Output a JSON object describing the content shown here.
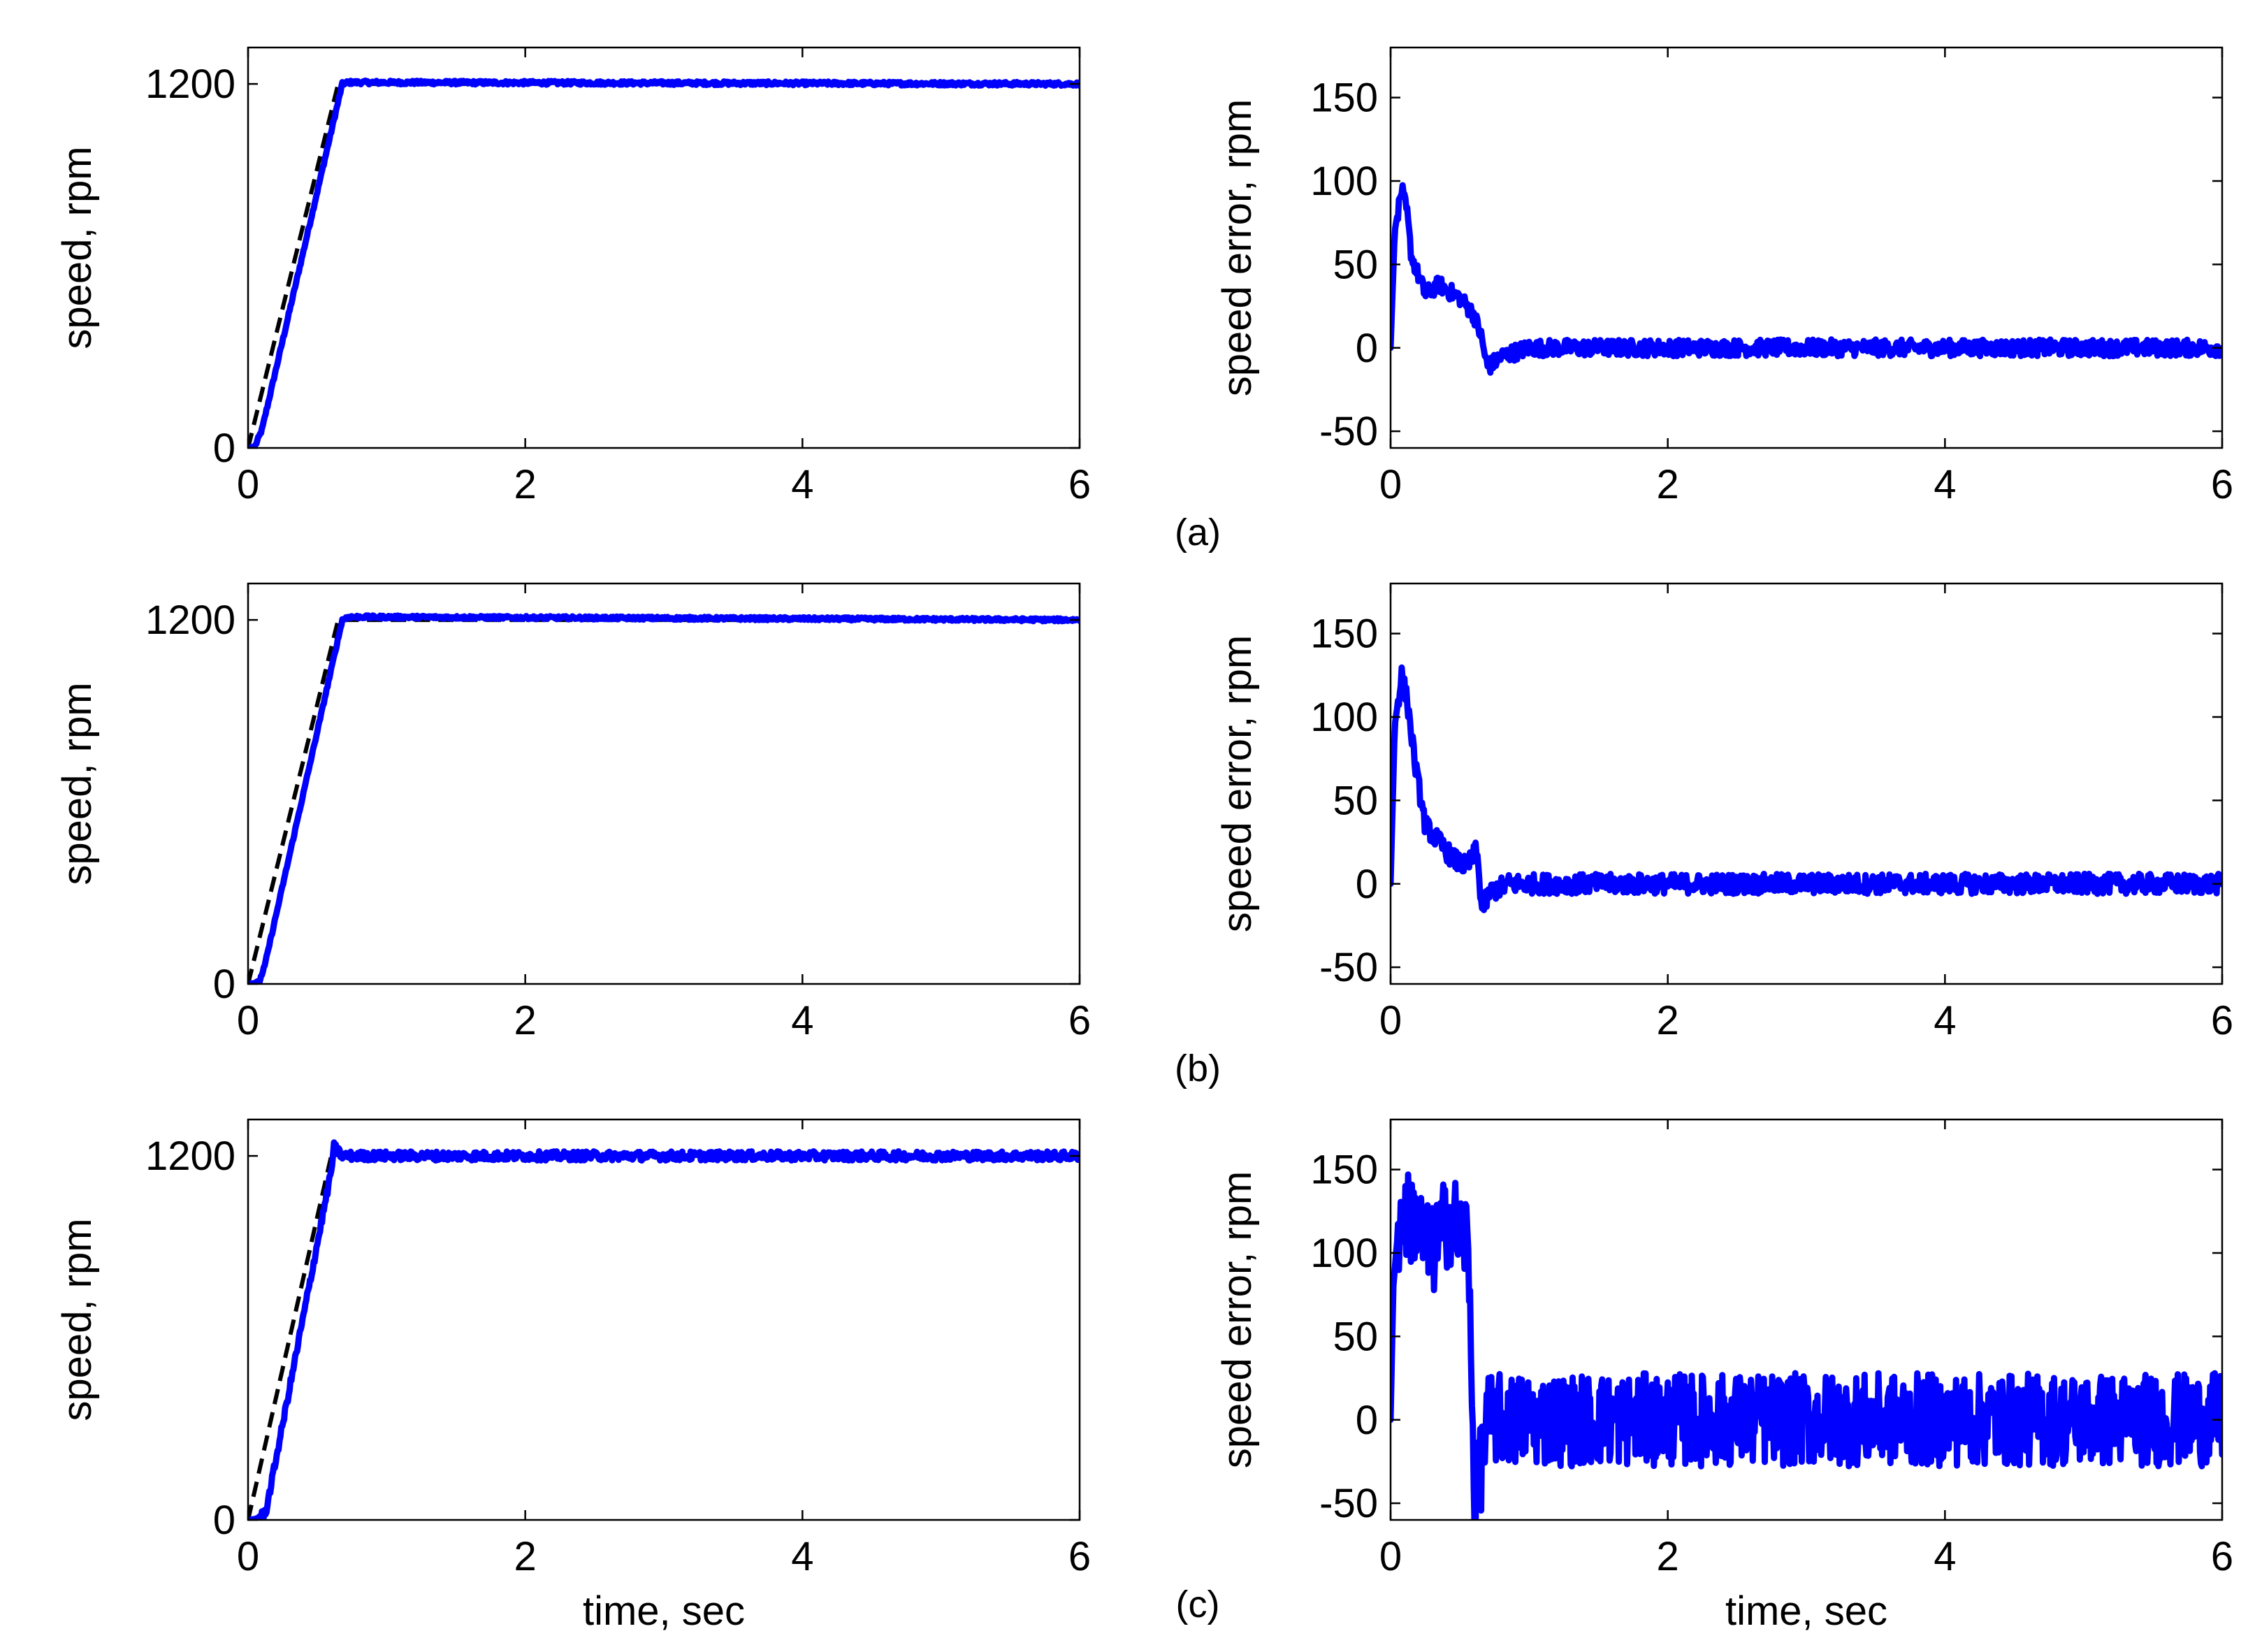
{
  "figure": {
    "panel_labels": [
      "(a)",
      "(b)",
      "(c)"
    ]
  },
  "chart_data": [
    {
      "id": "a-speed",
      "row": 0,
      "col": 0,
      "type": "line",
      "xlabel": "",
      "ylabel": "speed,  rpm",
      "xlim": [
        0,
        6
      ],
      "ylim": [
        0,
        1320
      ],
      "xticks": [
        0,
        2,
        4,
        6
      ],
      "yticks": [
        0,
        1200
      ],
      "series": [
        {
          "style": "reference",
          "color": "#000000",
          "dash": true,
          "x": [
            0,
            0.65,
            6
          ],
          "y": [
            0,
            1200,
            1200
          ]
        },
        {
          "style": "measured",
          "color": "#0000ff",
          "x": [
            0,
            0.05,
            0.1,
            0.68,
            0.72,
            6
          ],
          "y": [
            0,
            5,
            60,
            1200,
            1205,
            1200
          ],
          "noise": 6
        }
      ]
    },
    {
      "id": "a-error",
      "row": 0,
      "col": 1,
      "type": "line",
      "xlabel": "",
      "ylabel": "speed error,  rpm",
      "xlim": [
        0,
        6
      ],
      "ylim": [
        -60,
        180
      ],
      "xticks": [
        0,
        2,
        4,
        6
      ],
      "yticks": [
        -50,
        0,
        50,
        100,
        150
      ],
      "series": [
        {
          "style": "measured",
          "color": "#0000ff",
          "x": [
            0,
            0.03,
            0.08,
            0.12,
            0.15,
            0.25,
            0.35,
            0.4,
            0.5,
            0.55,
            0.6,
            0.65,
            0.7,
            0.8,
            1.0,
            6
          ],
          "y": [
            0,
            70,
            95,
            80,
            55,
            32,
            38,
            35,
            30,
            25,
            20,
            8,
            -12,
            -5,
            0,
            0
          ],
          "noise": 5
        }
      ]
    },
    {
      "id": "b-speed",
      "row": 1,
      "col": 0,
      "type": "line",
      "xlabel": "",
      "ylabel": "speed,  rpm",
      "xlim": [
        0,
        6
      ],
      "ylim": [
        0,
        1320
      ],
      "xticks": [
        0,
        2,
        4,
        6
      ],
      "yticks": [
        0,
        1200
      ],
      "series": [
        {
          "style": "reference",
          "color": "#000000",
          "dash": true,
          "x": [
            0,
            0.65,
            6
          ],
          "y": [
            0,
            1200,
            1200
          ]
        },
        {
          "style": "measured",
          "color": "#0000ff",
          "x": [
            0,
            0.08,
            0.12,
            0.68,
            0.72,
            6
          ],
          "y": [
            0,
            5,
            60,
            1200,
            1210,
            1200
          ],
          "noise": 5
        }
      ]
    },
    {
      "id": "b-error",
      "row": 1,
      "col": 1,
      "type": "line",
      "xlabel": "",
      "ylabel": "speed error,  rpm",
      "xlim": [
        0,
        6
      ],
      "ylim": [
        -60,
        180
      ],
      "xticks": [
        0,
        2,
        4,
        6
      ],
      "yticks": [
        -50,
        0,
        50,
        100,
        150
      ],
      "series": [
        {
          "style": "measured",
          "color": "#0000ff",
          "x": [
            0,
            0.03,
            0.08,
            0.12,
            0.18,
            0.25,
            0.35,
            0.45,
            0.55,
            0.62,
            0.66,
            0.72,
            0.85,
            1.0,
            6
          ],
          "y": [
            0,
            95,
            125,
            110,
            70,
            35,
            25,
            15,
            10,
            20,
            -15,
            -5,
            0,
            0,
            0
          ],
          "noise": 6
        }
      ]
    },
    {
      "id": "c-speed",
      "row": 2,
      "col": 0,
      "type": "line",
      "xlabel": "time,  sec",
      "ylabel": "speed,  rpm",
      "xlim": [
        0,
        6
      ],
      "ylim": [
        0,
        1320
      ],
      "xticks": [
        0,
        2,
        4,
        6
      ],
      "yticks": [
        0,
        1200
      ],
      "series": [
        {
          "style": "reference",
          "color": "#000000",
          "dash": true,
          "x": [
            0,
            0.6,
            6
          ],
          "y": [
            0,
            1200,
            1200
          ]
        },
        {
          "style": "measured",
          "color": "#0000ff",
          "x": [
            0,
            0.08,
            0.13,
            0.6,
            0.62,
            0.68,
            6
          ],
          "y": [
            0,
            5,
            30,
            1150,
            1230,
            1200,
            1200
          ],
          "noise": 15
        }
      ]
    },
    {
      "id": "c-error",
      "row": 2,
      "col": 1,
      "type": "line",
      "xlabel": "time,  sec",
      "ylabel": "speed error,  rpm",
      "xlim": [
        0,
        6
      ],
      "ylim": [
        -60,
        180
      ],
      "xticks": [
        0,
        2,
        4,
        6
      ],
      "yticks": [
        -50,
        0,
        50,
        100,
        150
      ],
      "series": [
        {
          "style": "measured",
          "color": "#0000ff",
          "x": [
            0,
            0.02,
            0.05,
            0.1,
            0.18,
            0.25,
            0.3,
            0.38,
            0.45,
            0.5,
            0.55,
            0.58,
            0.6,
            0.63,
            0.7,
            6
          ],
          "y": [
            0,
            80,
            110,
            122,
            120,
            105,
            100,
            115,
            122,
            110,
            110,
            60,
            -45,
            -40,
            0,
            0
          ],
          "noise": 28
        }
      ]
    }
  ]
}
